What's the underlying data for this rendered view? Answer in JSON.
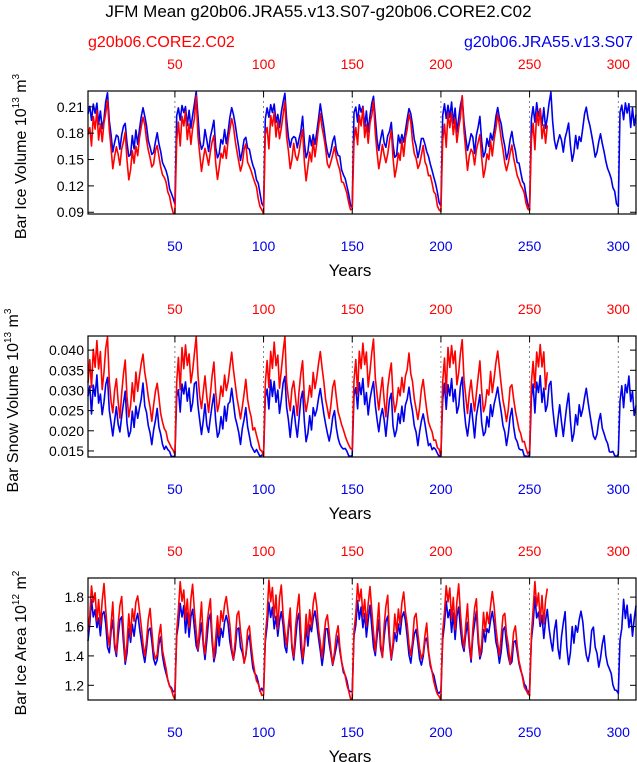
{
  "title": "JFM Mean g20b06.JRA55.v13.S07-g20b06.CORE2.C02",
  "legend": {
    "red_label": "g20b06.CORE2.C02",
    "blue_label": "g20b06.JRA55.v13.S07"
  },
  "colors": {
    "red": "#ff0000",
    "blue": "#0000ee",
    "axis": "#000000",
    "dash": "#666666"
  },
  "chart_data": [
    {
      "type": "line",
      "title": "",
      "ylabel": "Bar Ice Volume 10",
      "ylabel_exp": "13",
      "ylabel_unit": " m",
      "ylabel_unit_exp": "3",
      "xlabel": "Years",
      "xlim": [
        1,
        310
      ],
      "ylim": [
        0.088,
        0.228
      ],
      "yticks": [
        0.09,
        0.12,
        0.15,
        0.18,
        0.21
      ],
      "ytick_labels": [
        "0.09",
        "0.12",
        "0.15",
        "0.18",
        "0.21"
      ],
      "xticks_bottom": [
        50,
        100,
        150,
        200,
        250,
        300
      ],
      "xticks_bottom_labels": [
        "50",
        "100",
        "150",
        "200",
        "250",
        "300"
      ],
      "xticks_top": [
        50,
        100,
        150,
        200,
        250,
        300
      ],
      "xticks_top_labels": [
        "50",
        "100",
        "150",
        "200",
        "250",
        "300"
      ],
      "dashed_verticals": [
        50,
        100,
        150,
        200,
        250,
        300
      ],
      "series": [
        {
          "name": "g20b06.CORE2.C02",
          "color": "red",
          "cycle": 50,
          "start": 1,
          "end": 260,
          "values": [
            0.175,
            0.19,
            0.165,
            0.2,
            0.185,
            0.205,
            0.175,
            0.192,
            0.17,
            0.188,
            0.2,
            0.22,
            0.18,
            0.16,
            0.14,
            0.15,
            0.165,
            0.155,
            0.145,
            0.16,
            0.17,
            0.18,
            0.15,
            0.13,
            0.14,
            0.16,
            0.15,
            0.168,
            0.155,
            0.17,
            0.185,
            0.2,
            0.19,
            0.175,
            0.16,
            0.148,
            0.138,
            0.145,
            0.158,
            0.165,
            0.15,
            0.142,
            0.135,
            0.128,
            0.122,
            0.115,
            0.108,
            0.1,
            0.093,
            0.09
          ]
        },
        {
          "name": "g20b06.JRA55.v13.S07",
          "color": "blue",
          "cycle": 50,
          "start": 1,
          "end": 310,
          "values": [
            0.2,
            0.21,
            0.195,
            0.215,
            0.2,
            0.212,
            0.19,
            0.205,
            0.185,
            0.2,
            0.215,
            0.225,
            0.195,
            0.175,
            0.16,
            0.17,
            0.18,
            0.172,
            0.16,
            0.175,
            0.185,
            0.195,
            0.168,
            0.15,
            0.158,
            0.175,
            0.165,
            0.18,
            0.17,
            0.185,
            0.198,
            0.21,
            0.2,
            0.188,
            0.175,
            0.163,
            0.152,
            0.16,
            0.172,
            0.178,
            0.165,
            0.158,
            0.15,
            0.142,
            0.135,
            0.128,
            0.12,
            0.112,
            0.102,
            0.096
          ]
        }
      ]
    },
    {
      "type": "line",
      "title": "",
      "ylabel": "Bar Snow Volume 10",
      "ylabel_exp": "13",
      "ylabel_unit": " m",
      "ylabel_unit_exp": "3",
      "xlabel": "Years",
      "xlim": [
        1,
        310
      ],
      "ylim": [
        0.0135,
        0.0435
      ],
      "yticks": [
        0.015,
        0.02,
        0.025,
        0.03,
        0.035,
        0.04
      ],
      "ytick_labels": [
        "0.015",
        "0.020",
        "0.025",
        "0.030",
        "0.035",
        "0.040"
      ],
      "xticks_bottom": [
        50,
        100,
        150,
        200,
        250,
        300
      ],
      "xticks_bottom_labels": [
        "50",
        "100",
        "150",
        "200",
        "250",
        "300"
      ],
      "xticks_top": [
        50,
        100,
        150,
        200,
        250,
        300
      ],
      "xticks_top_labels": [
        "50",
        "100",
        "150",
        "200",
        "250",
        "300"
      ],
      "dashed_verticals": [
        50,
        100,
        150,
        200,
        250,
        300
      ],
      "series": [
        {
          "name": "g20b06.CORE2.C02",
          "color": "red",
          "cycle": 50,
          "start": 1,
          "end": 260,
          "values": [
            0.032,
            0.038,
            0.03,
            0.04,
            0.035,
            0.042,
            0.036,
            0.039,
            0.031,
            0.035,
            0.04,
            0.043,
            0.033,
            0.028,
            0.025,
            0.03,
            0.033,
            0.028,
            0.024,
            0.03,
            0.034,
            0.037,
            0.029,
            0.024,
            0.027,
            0.031,
            0.028,
            0.034,
            0.03,
            0.033,
            0.036,
            0.039,
            0.035,
            0.032,
            0.028,
            0.025,
            0.023,
            0.026,
            0.03,
            0.032,
            0.028,
            0.025,
            0.023,
            0.021,
            0.02,
            0.018,
            0.017,
            0.016,
            0.015,
            0.0145
          ]
        },
        {
          "name": "g20b06.JRA55.v13.S07",
          "color": "blue",
          "cycle": 50,
          "start": 1,
          "end": 310,
          "values": [
            0.028,
            0.031,
            0.025,
            0.032,
            0.029,
            0.033,
            0.027,
            0.03,
            0.024,
            0.027,
            0.031,
            0.033,
            0.026,
            0.022,
            0.019,
            0.023,
            0.026,
            0.022,
            0.019,
            0.023,
            0.027,
            0.029,
            0.022,
            0.018,
            0.02,
            0.024,
            0.021,
            0.026,
            0.023,
            0.026,
            0.028,
            0.031,
            0.027,
            0.024,
            0.021,
            0.019,
            0.017,
            0.02,
            0.023,
            0.025,
            0.021,
            0.019,
            0.017,
            0.016,
            0.0155,
            0.015,
            0.0145,
            0.014,
            0.0138,
            0.0137
          ]
        }
      ]
    },
    {
      "type": "line",
      "title": "",
      "ylabel": "Bar Ice Area 10",
      "ylabel_exp": "12",
      "ylabel_unit": " m",
      "ylabel_unit_exp": "2",
      "xlabel": "Years",
      "xlim": [
        1,
        310
      ],
      "ylim": [
        1.1,
        1.93
      ],
      "yticks": [
        1.2,
        1.4,
        1.6,
        1.8
      ],
      "ytick_labels": [
        "1.2",
        "1.4",
        "1.6",
        "1.8"
      ],
      "xticks_bottom": [
        50,
        100,
        150,
        200,
        250,
        300
      ],
      "xticks_bottom_labels": [
        "50",
        "100",
        "150",
        "200",
        "250",
        "300"
      ],
      "xticks_top": [
        50,
        100,
        150,
        200,
        250,
        300
      ],
      "xticks_top_labels": [
        "50",
        "100",
        "150",
        "200",
        "250",
        "300"
      ],
      "dashed_verticals": [
        50,
        100,
        150,
        200,
        250,
        300
      ],
      "series": [
        {
          "name": "g20b06.CORE2.C02",
          "color": "red",
          "cycle": 50,
          "start": 1,
          "end": 260,
          "values": [
            1.55,
            1.7,
            1.9,
            1.75,
            1.85,
            1.65,
            1.8,
            1.6,
            1.78,
            1.88,
            1.7,
            1.55,
            1.45,
            1.62,
            1.75,
            1.5,
            1.4,
            1.6,
            1.72,
            1.8,
            1.55,
            1.38,
            1.5,
            1.68,
            1.55,
            1.7,
            1.62,
            1.75,
            1.82,
            1.72,
            1.6,
            1.48,
            1.4,
            1.52,
            1.66,
            1.7,
            1.55,
            1.45,
            1.36,
            1.42,
            1.55,
            1.6,
            1.45,
            1.35,
            1.3,
            1.25,
            1.2,
            1.15,
            1.13,
            1.12
          ]
        },
        {
          "name": "g20b06.JRA55.v13.S07",
          "color": "blue",
          "cycle": 50,
          "start": 1,
          "end": 310,
          "values": [
            1.52,
            1.6,
            1.78,
            1.65,
            1.72,
            1.58,
            1.68,
            1.52,
            1.66,
            1.72,
            1.6,
            1.48,
            1.42,
            1.55,
            1.64,
            1.45,
            1.38,
            1.52,
            1.62,
            1.68,
            1.48,
            1.36,
            1.44,
            1.58,
            1.48,
            1.6,
            1.55,
            1.65,
            1.7,
            1.62,
            1.52,
            1.42,
            1.36,
            1.45,
            1.56,
            1.6,
            1.48,
            1.4,
            1.34,
            1.38,
            1.48,
            1.52,
            1.42,
            1.34,
            1.3,
            1.26,
            1.22,
            1.18,
            1.16,
            1.15
          ]
        }
      ]
    }
  ]
}
